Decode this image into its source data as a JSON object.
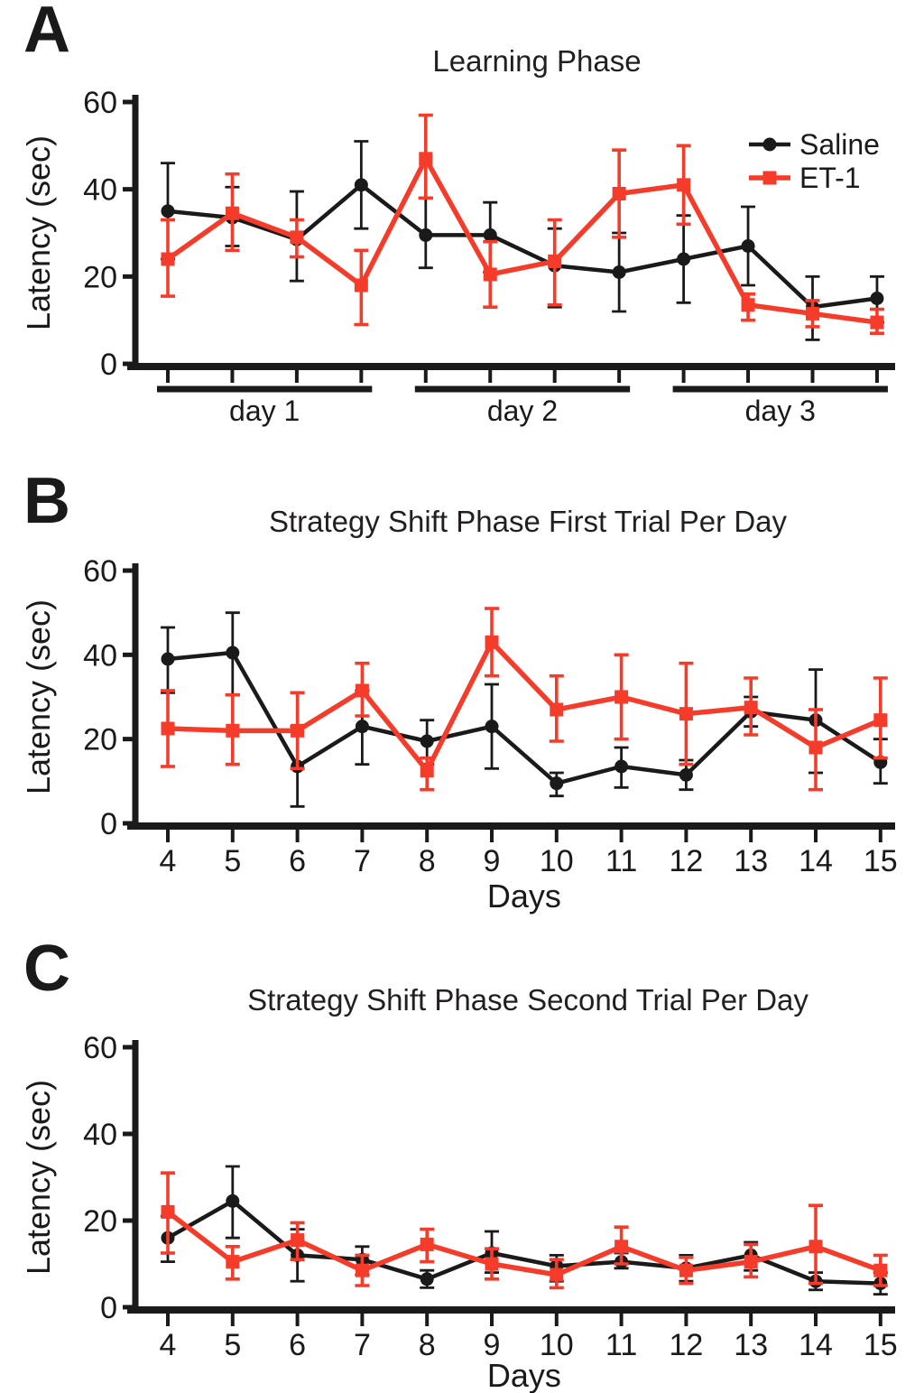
{
  "figure": {
    "background": "#ffffff",
    "colors": {
      "saline": "#1a1a1a",
      "et1": "#f53c2b"
    }
  },
  "chart_data": [
    {
      "id": "a",
      "letter": "A",
      "type": "line",
      "title": "Learning Phase",
      "ylabel": "Latency (sec)",
      "xlabel": "",
      "ylim": [
        0,
        60
      ],
      "yticks": [
        0,
        20,
        40,
        60
      ],
      "x": [
        1,
        2,
        3,
        4,
        5,
        6,
        7,
        8,
        9,
        10,
        11,
        12
      ],
      "show_x_tick_labels": false,
      "x_groups": [
        {
          "label": "day 1",
          "from": 0,
          "to": 3
        },
        {
          "label": "day 2",
          "from": 4,
          "to": 7
        },
        {
          "label": "day 3",
          "from": 8,
          "to": 11
        }
      ],
      "legend": {
        "show": true,
        "position": "top-right"
      },
      "series": [
        {
          "name": "Saline",
          "marker": "circle",
          "color": "#1a1a1a",
          "values": [
            35,
            33.5,
            28.5,
            41,
            29.5,
            29.5,
            22.5,
            21,
            24,
            27,
            13,
            15
          ],
          "err_lo": [
            24,
            27,
            19,
            31,
            22,
            21,
            13,
            12,
            14,
            18,
            5.5,
            9.5
          ],
          "err_hi": [
            46,
            40.5,
            39.5,
            51,
            38,
            37,
            31,
            30,
            34,
            36,
            20,
            20
          ]
        },
        {
          "name": "ET-1",
          "marker": "square",
          "color": "#f53c2b",
          "values": [
            24,
            34.5,
            29,
            18,
            47,
            20.5,
            23.5,
            39,
            41,
            13.5,
            11.5,
            9.5
          ],
          "err_lo": [
            15.5,
            26,
            24.5,
            9,
            38,
            13,
            13.5,
            29,
            32,
            10,
            8.5,
            7
          ],
          "err_hi": [
            33,
            43.5,
            33,
            26,
            57,
            28,
            33,
            49,
            50,
            16,
            14.5,
            12.5
          ]
        }
      ]
    },
    {
      "id": "b",
      "letter": "B",
      "type": "line",
      "title": "Strategy Shift Phase First Trial Per Day",
      "ylabel": "Latency (sec)",
      "xlabel": "Days",
      "ylim": [
        0,
        60
      ],
      "yticks": [
        0,
        20,
        40,
        60
      ],
      "x": [
        4,
        5,
        6,
        7,
        8,
        9,
        10,
        11,
        12,
        13,
        14,
        15
      ],
      "show_x_tick_labels": true,
      "legend": {
        "show": false
      },
      "series": [
        {
          "name": "Saline",
          "marker": "circle",
          "color": "#1a1a1a",
          "values": [
            39,
            40.5,
            13.5,
            23,
            19.5,
            23,
            9.5,
            13.5,
            11.5,
            26.5,
            24.5,
            14.5
          ],
          "err_lo": [
            31,
            30.5,
            4,
            14,
            14,
            13,
            6.5,
            8.5,
            8,
            23,
            12,
            9.5
          ],
          "err_hi": [
            46.5,
            50,
            23,
            31.5,
            24.5,
            33,
            12,
            18,
            15,
            30,
            36.5,
            20
          ]
        },
        {
          "name": "ET-1",
          "marker": "square",
          "color": "#f53c2b",
          "values": [
            22.5,
            22,
            22,
            31.5,
            12.5,
            43,
            27,
            30,
            26,
            27.5,
            18,
            24.5
          ],
          "err_lo": [
            13.5,
            14,
            13,
            25.5,
            8,
            35,
            19.5,
            20,
            14,
            21,
            8,
            15.5
          ],
          "err_hi": [
            31.5,
            30.5,
            31,
            38,
            15.5,
            51,
            35,
            40,
            38,
            34.5,
            27,
            34.5
          ]
        }
      ]
    },
    {
      "id": "c",
      "letter": "C",
      "type": "line",
      "title": "Strategy Shift Phase Second Trial Per Day",
      "ylabel": "Latency (sec)",
      "xlabel": "Days",
      "ylim": [
        0,
        60
      ],
      "yticks": [
        0,
        20,
        40,
        60
      ],
      "x": [
        4,
        5,
        6,
        7,
        8,
        9,
        10,
        11,
        12,
        13,
        14,
        15
      ],
      "show_x_tick_labels": true,
      "legend": {
        "show": false
      },
      "series": [
        {
          "name": "Saline",
          "marker": "circle",
          "color": "#1a1a1a",
          "values": [
            16,
            24.5,
            12,
            11,
            6.5,
            12.5,
            9.5,
            10.5,
            9,
            12,
            6,
            5.5
          ],
          "err_lo": [
            10.5,
            16,
            6,
            7.5,
            4.5,
            8,
            6,
            9,
            6,
            8.5,
            4,
            3
          ],
          "err_hi": [
            21,
            32.5,
            18,
            14,
            8.5,
            17.5,
            12,
            12.5,
            12,
            15,
            8,
            8
          ]
        },
        {
          "name": "ET-1",
          "marker": "square",
          "color": "#f53c2b",
          "values": [
            22,
            10.5,
            15.5,
            8.5,
            14.5,
            10,
            7.5,
            14,
            8.5,
            10.5,
            14,
            8.5
          ],
          "err_lo": [
            12.5,
            6.5,
            11,
            5,
            10.5,
            6.5,
            4.5,
            10,
            5.5,
            7,
            5.5,
            5
          ],
          "err_hi": [
            31,
            14,
            19.5,
            12,
            18,
            13.5,
            11,
            18.5,
            11.5,
            14.5,
            23.5,
            12
          ]
        }
      ]
    }
  ]
}
